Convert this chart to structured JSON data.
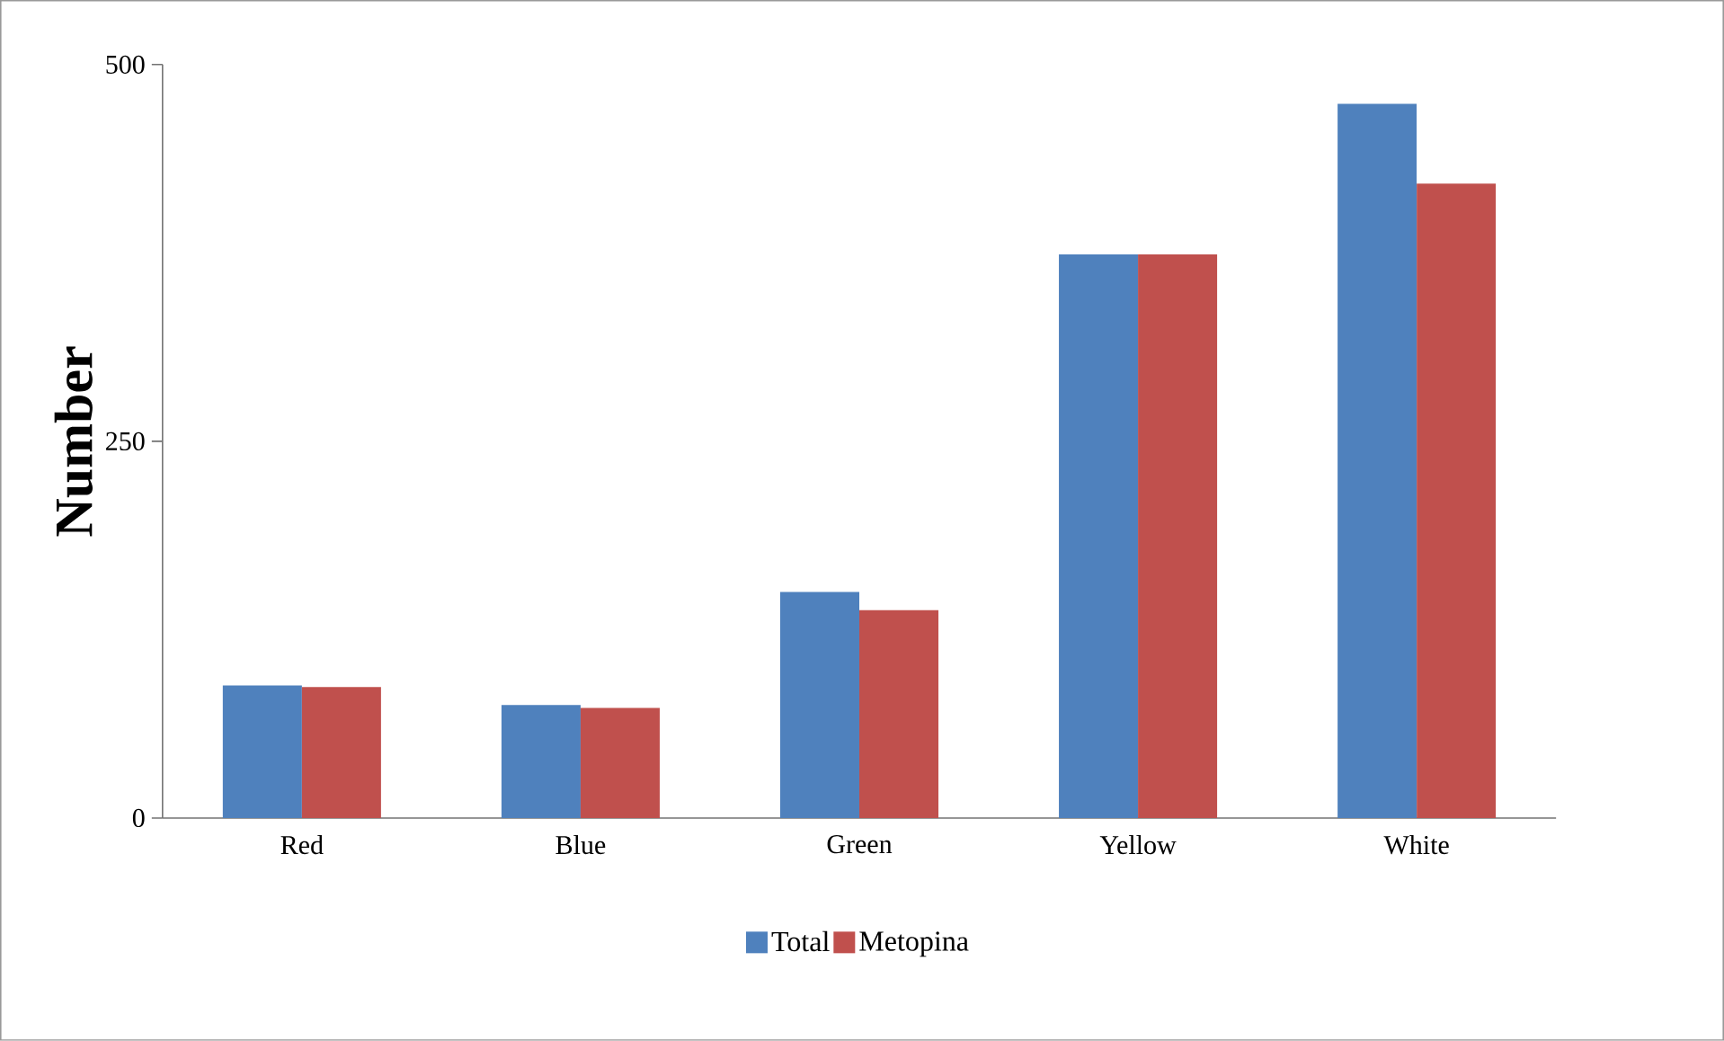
{
  "chart_data": {
    "type": "bar",
    "ylabel": "Number",
    "categories": [
      "Red",
      "Blue",
      "Green",
      "Yellow",
      "White"
    ],
    "series": [
      {
        "name": "Total",
        "color": "#4f81bd",
        "values": [
          88,
          75,
          150,
          374,
          474
        ]
      },
      {
        "name": "Metopina",
        "color": "#c0504d",
        "values": [
          87,
          73,
          138,
          374,
          421
        ]
      }
    ],
    "ylim": [
      0,
      500
    ],
    "yticks": [
      0,
      250,
      500
    ],
    "grid": false,
    "legend": "bottom"
  }
}
